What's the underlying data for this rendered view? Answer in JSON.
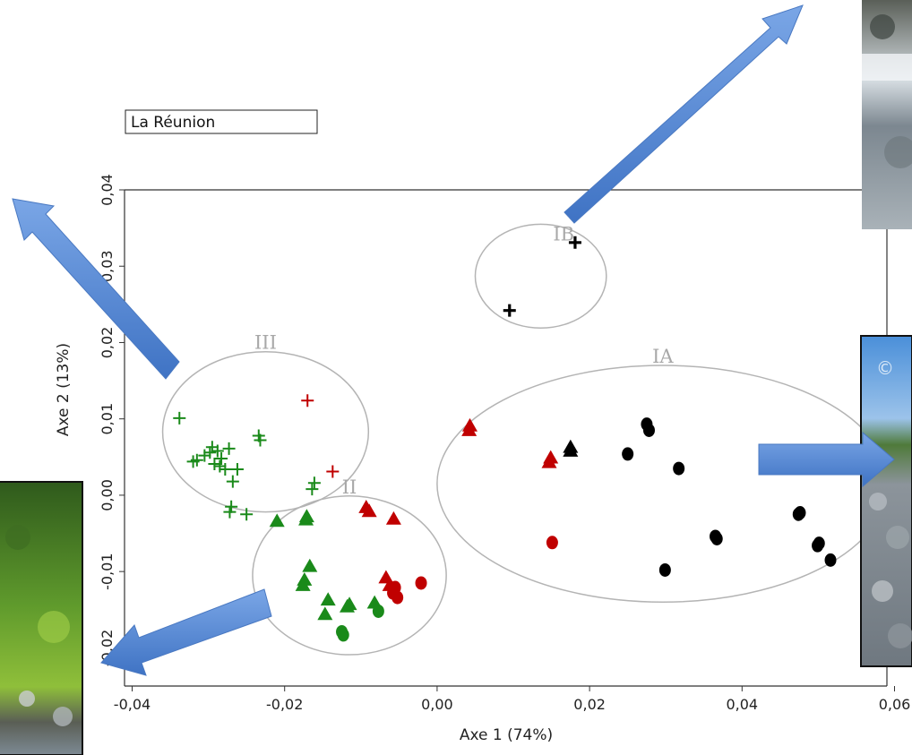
{
  "chart_data": {
    "type": "scatter",
    "title": "",
    "region_label": "La Réunion",
    "xlabel": "Axe 1 (74%)",
    "ylabel": "Axe 2 (13%)",
    "xlim": [
      -0.041,
      0.059
    ],
    "ylim": [
      -0.025,
      0.04
    ],
    "x_ticks": [
      -0.04,
      -0.02,
      0.0,
      0.02,
      0.04,
      0.06
    ],
    "x_tick_labels": [
      "-0,04",
      "-0,02",
      "0,00",
      "0,02",
      "0,04",
      "0,06"
    ],
    "y_ticks": [
      -0.02,
      -0.01,
      0.0,
      0.01,
      0.02,
      0.03,
      0.04
    ],
    "y_tick_labels": [
      "-0,02",
      "-0,01",
      "0,00",
      "0,01",
      "0,02",
      "0,03",
      "0,04"
    ],
    "grid": false,
    "colors": {
      "green": "#1a8a1a",
      "red": "#c00000",
      "black": "#000000",
      "ellipse": "#b4b4b4",
      "arrow": "#5b8ed6"
    },
    "groups": [
      {
        "label": "III",
        "center": [
          -0.0225,
          0.0083
        ],
        "radii": [
          0.0135,
          0.0105
        ]
      },
      {
        "label": "II",
        "center": [
          -0.0115,
          -0.0105
        ],
        "radii": [
          0.0127,
          0.0104
        ]
      },
      {
        "label": "IB",
        "center": [
          0.0136,
          0.0287
        ],
        "radii": [
          0.0086,
          0.0068
        ]
      },
      {
        "label": "IA",
        "center": [
          0.0296,
          0.0015
        ],
        "radii": [
          0.0296,
          0.0155
        ]
      }
    ],
    "series": [
      {
        "marker": "plus",
        "color": "green",
        "points": [
          [
            -0.0338,
            0.0101
          ],
          [
            -0.032,
            0.0044
          ],
          [
            -0.0315,
            0.0046
          ],
          [
            -0.0305,
            0.0052
          ],
          [
            -0.0298,
            0.0056
          ],
          [
            -0.0292,
            0.0041
          ],
          [
            -0.0288,
            0.0058
          ],
          [
            -0.0283,
            0.0048
          ],
          [
            -0.0278,
            0.0034
          ],
          [
            -0.0273,
            0.0061
          ],
          [
            -0.0268,
            0.0018
          ],
          [
            -0.0262,
            0.0034
          ],
          [
            -0.0295,
            0.0063
          ],
          [
            -0.0285,
            0.0038
          ],
          [
            -0.0234,
            0.0078
          ],
          [
            -0.0232,
            0.0072
          ],
          [
            -0.0161,
            0.0016
          ],
          [
            -0.0164,
            0.0008
          ],
          [
            -0.027,
            -0.0015
          ],
          [
            -0.025,
            -0.0025
          ],
          [
            -0.0272,
            -0.0022
          ]
        ]
      },
      {
        "marker": "plus",
        "color": "red",
        "points": [
          [
            -0.017,
            0.0124
          ],
          [
            -0.0137,
            0.0031
          ]
        ]
      },
      {
        "marker": "plus",
        "color": "black",
        "points": [
          [
            0.0181,
            0.0331
          ],
          [
            0.0095,
            0.0242
          ]
        ]
      },
      {
        "marker": "triangle",
        "color": "green",
        "points": [
          [
            -0.021,
            -0.0034
          ],
          [
            -0.0172,
            -0.0032
          ],
          [
            -0.0171,
            -0.0028
          ],
          [
            -0.0167,
            -0.0093
          ],
          [
            -0.0174,
            -0.0111
          ],
          [
            -0.0176,
            -0.0118
          ],
          [
            -0.0143,
            -0.0137
          ],
          [
            -0.0147,
            -0.0156
          ],
          [
            -0.0118,
            -0.0146
          ],
          [
            -0.0082,
            -0.0141
          ],
          [
            -0.0115,
            -0.0143
          ]
        ]
      },
      {
        "marker": "triangle",
        "color": "red",
        "points": [
          [
            -0.0093,
            -0.0016
          ],
          [
            -0.0089,
            -0.0021
          ],
          [
            -0.0057,
            -0.0031
          ],
          [
            -0.0067,
            -0.0108
          ],
          [
            -0.0062,
            -0.0118
          ],
          [
            0.0043,
            0.0091
          ],
          [
            0.0042,
            0.0085
          ],
          [
            0.0149,
            0.0049
          ],
          [
            0.0147,
            0.0043
          ]
        ]
      },
      {
        "marker": "triangle",
        "color": "black",
        "points": [
          [
            0.0175,
            0.0063
          ],
          [
            0.0175,
            0.0058
          ]
        ]
      },
      {
        "marker": "circle",
        "color": "green",
        "points": [
          [
            -0.0125,
            -0.0179
          ],
          [
            -0.0123,
            -0.0183
          ],
          [
            -0.0077,
            -0.0152
          ]
        ]
      },
      {
        "marker": "circle",
        "color": "red",
        "points": [
          [
            -0.0058,
            -0.0128
          ],
          [
            -0.0052,
            -0.0134
          ],
          [
            -0.0021,
            -0.0115
          ],
          [
            -0.0055,
            -0.0121
          ],
          [
            0.0151,
            -0.0062
          ]
        ]
      },
      {
        "marker": "circle",
        "color": "black",
        "points": [
          [
            0.0275,
            0.0093
          ],
          [
            0.0278,
            0.0085
          ],
          [
            0.025,
            0.0054
          ],
          [
            0.0317,
            0.0035
          ],
          [
            0.0367,
            -0.0057
          ],
          [
            0.0365,
            -0.0054
          ],
          [
            0.0299,
            -0.0098
          ],
          [
            0.0474,
            -0.0025
          ],
          [
            0.0476,
            -0.0023
          ],
          [
            0.0499,
            -0.0066
          ],
          [
            0.0501,
            -0.0063
          ],
          [
            0.0516,
            -0.0085
          ]
        ]
      }
    ]
  }
}
